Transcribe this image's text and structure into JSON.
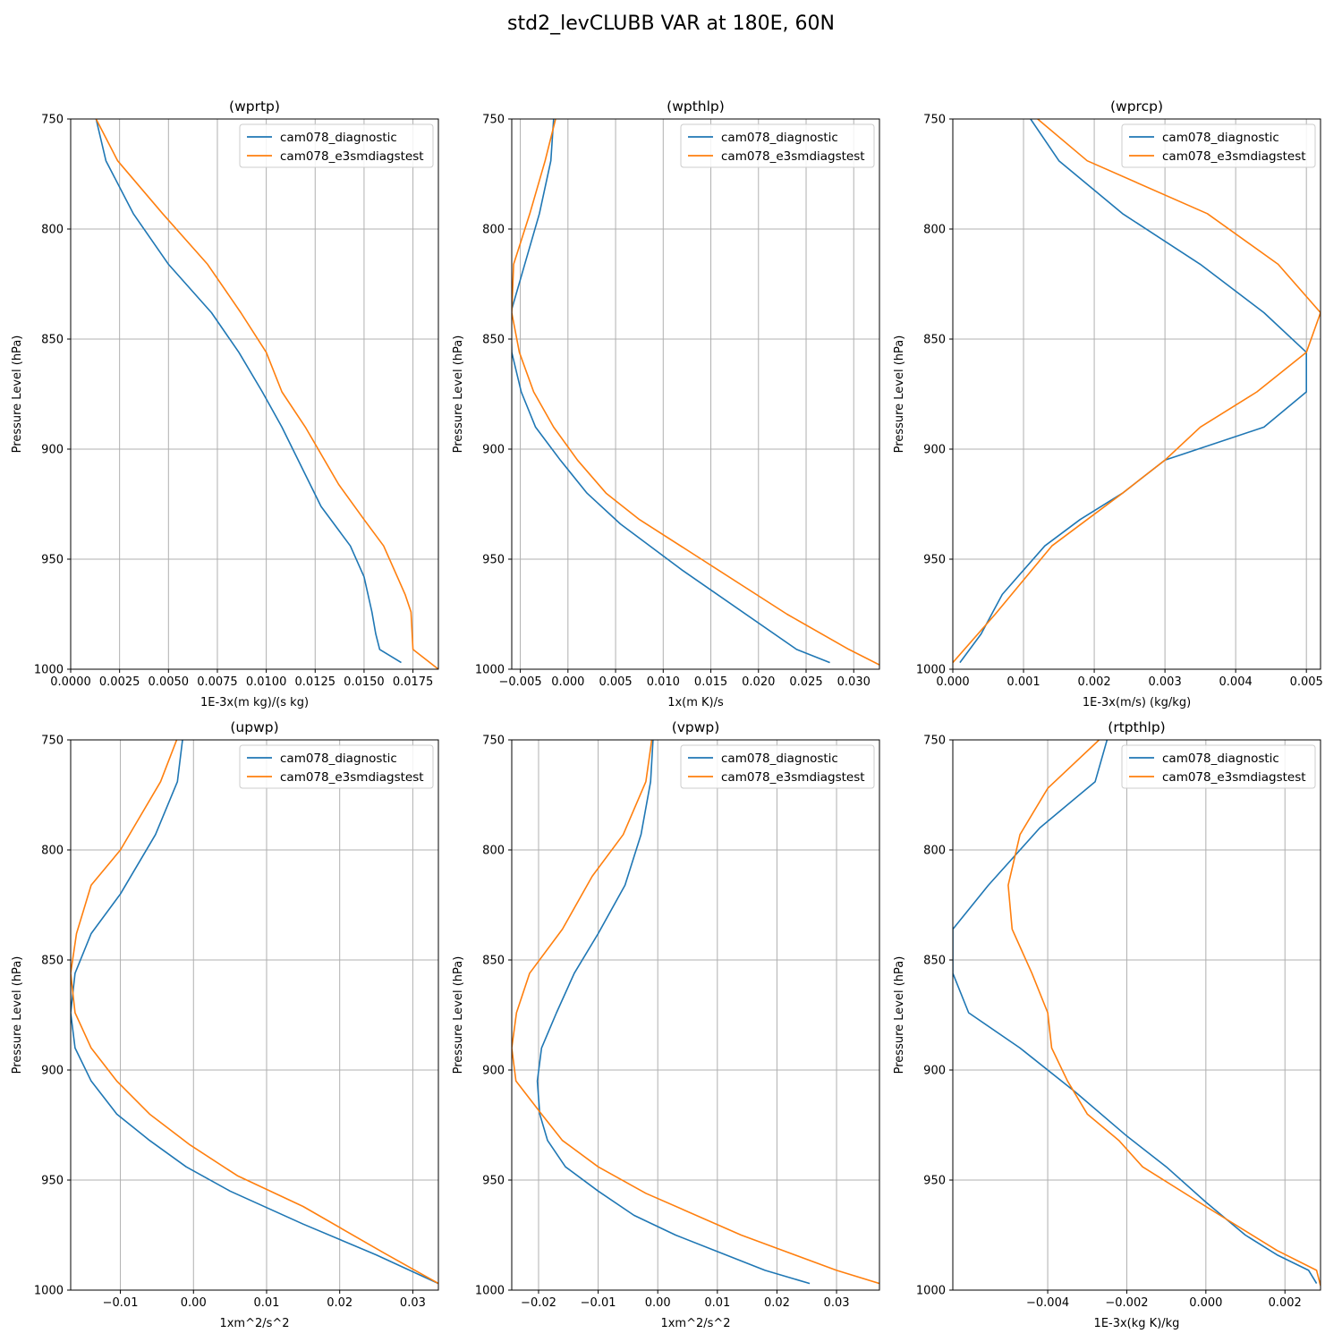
{
  "figure": {
    "title": "std2_levCLUBB VAR at 180E, 60N"
  },
  "colors": {
    "diagnostic": "#1f77b4",
    "e3smdiagstest": "#ff7f0e",
    "grid": "#b0b0b0"
  },
  "chart_data": [
    {
      "type": "line",
      "title": "(wprtp)",
      "xlabel": "1E-3x(m kg)/(s kg)",
      "ylabel": "Pressure Level (hPa)",
      "xlim": [
        0,
        0.0188
      ],
      "ylim": [
        1000,
        750
      ],
      "xticks": [
        0,
        0.0025,
        0.005,
        0.0075,
        0.01,
        0.0125,
        0.015,
        0.0175
      ],
      "xtick_labels": [
        "0.0000",
        "0.0025",
        "0.0050",
        "0.0075",
        "0.0100",
        "0.0125",
        "0.0150",
        "0.0175"
      ],
      "yticks": [
        750,
        800,
        850,
        900,
        950,
        1000
      ],
      "ytick_labels": [
        "750",
        "800",
        "850",
        "900",
        "950",
        "1000"
      ],
      "grid": true,
      "legend": "top-right",
      "series": [
        {
          "name": "cam078_diagnostic",
          "x": [
            0.0013,
            0.0018,
            0.0032,
            0.005,
            0.0072,
            0.0086,
            0.0098,
            0.0108,
            0.0128,
            0.0143,
            0.015,
            0.0154,
            0.0156,
            0.0158,
            0.0169
          ],
          "y": [
            750,
            769,
            793,
            816,
            838,
            856,
            874,
            890,
            926,
            944,
            958,
            974,
            984,
            991,
            997
          ]
        },
        {
          "name": "cam078_e3smdiagstest",
          "x": [
            0.0013,
            0.0024,
            0.0047,
            0.007,
            0.0087,
            0.01,
            0.0108,
            0.012,
            0.0137,
            0.015,
            0.016,
            0.0167,
            0.0171,
            0.0174,
            0.0175,
            0.0188
          ],
          "y": [
            750,
            769,
            793,
            816,
            838,
            856,
            874,
            890,
            916,
            932,
            944,
            958,
            966,
            974,
            991,
            1000
          ]
        }
      ]
    },
    {
      "type": "line",
      "title": "(wpthlp)",
      "xlabel": "1x(m K)/s",
      "ylabel": "Pressure Level (hPa)",
      "xlim": [
        -0.0059,
        0.0327
      ],
      "ylim": [
        1000,
        750
      ],
      "xticks": [
        -0.005,
        0,
        0.005,
        0.01,
        0.015,
        0.02,
        0.025,
        0.03
      ],
      "xtick_labels": [
        "−0.005",
        "0.000",
        "0.005",
        "0.010",
        "0.015",
        "0.020",
        "0.025",
        "0.030"
      ],
      "yticks": [
        750,
        800,
        850,
        900,
        950,
        1000
      ],
      "ytick_labels": [
        "750",
        "800",
        "850",
        "900",
        "950",
        "1000"
      ],
      "grid": true,
      "legend": "top-right",
      "series": [
        {
          "name": "cam078_diagnostic",
          "x": [
            -0.0015,
            -0.0018,
            -0.003,
            -0.0048,
            -0.006,
            -0.0059,
            -0.0049,
            -0.0034,
            -0.0008,
            0.002,
            0.0055,
            0.012,
            0.024,
            0.0275
          ],
          "y": [
            750,
            769,
            793,
            820,
            838,
            856,
            874,
            890,
            905,
            920,
            934,
            955,
            991,
            997
          ]
        },
        {
          "name": "cam078_e3smdiagstest",
          "x": [
            -0.0013,
            -0.0024,
            -0.004,
            -0.0057,
            -0.0059,
            -0.0051,
            -0.0036,
            -0.0015,
            0.001,
            0.004,
            0.0075,
            0.014,
            0.023,
            0.0295,
            0.0327
          ],
          "y": [
            750,
            769,
            793,
            816,
            838,
            856,
            874,
            890,
            905,
            920,
            932,
            950,
            975,
            991,
            998
          ]
        }
      ]
    },
    {
      "type": "line",
      "title": "(wprcp)",
      "xlabel": "1E-3x(m/s) (kg/kg)",
      "ylabel": "Pressure Level (hPa)",
      "xlim": [
        0,
        0.0052
      ],
      "ylim": [
        1000,
        750
      ],
      "xticks": [
        0,
        0.001,
        0.002,
        0.003,
        0.004,
        0.005
      ],
      "xtick_labels": [
        "0.000",
        "0.001",
        "0.002",
        "0.003",
        "0.004",
        "0.005"
      ],
      "yticks": [
        750,
        800,
        850,
        900,
        950,
        1000
      ],
      "ytick_labels": [
        "750",
        "800",
        "850",
        "900",
        "950",
        "1000"
      ],
      "grid": true,
      "legend": "top-right",
      "series": [
        {
          "name": "cam078_diagnostic",
          "x": [
            0.0011,
            0.0015,
            0.0024,
            0.0035,
            0.0044,
            0.005,
            0.005,
            0.0044,
            0.003,
            0.0024,
            0.0018,
            0.0013,
            0.001,
            0.0007,
            0.0004,
            0.0001
          ],
          "y": [
            750,
            769,
            793,
            816,
            838,
            856,
            874,
            890,
            905,
            920,
            932,
            944,
            955,
            966,
            984,
            997
          ]
        },
        {
          "name": "cam078_e3smdiagstest",
          "x": [
            0.0012,
            0.0019,
            0.0036,
            0.0046,
            0.0052,
            0.005,
            0.0043,
            0.0035,
            0.003,
            0.0024,
            0.0019,
            0.0014,
            0.0006,
            0.0
          ],
          "y": [
            750,
            769,
            793,
            816,
            838,
            856,
            874,
            890,
            905,
            920,
            932,
            944,
            975,
            997
          ]
        }
      ]
    },
    {
      "type": "line",
      "title": "(upwp)",
      "xlabel": "1xm^2/s^2",
      "ylabel": "Pressure Level (hPa)",
      "xlim": [
        -0.0168,
        0.0335
      ],
      "ylim": [
        1000,
        750
      ],
      "xticks": [
        -0.01,
        0,
        0.01,
        0.02,
        0.03
      ],
      "xtick_labels": [
        "−0.01",
        "0.00",
        "0.01",
        "0.02",
        "0.03"
      ],
      "yticks": [
        750,
        800,
        850,
        900,
        950,
        1000
      ],
      "ytick_labels": [
        "750",
        "800",
        "850",
        "900",
        "950",
        "1000"
      ],
      "grid": true,
      "legend": "top-right",
      "series": [
        {
          "name": "cam078_diagnostic",
          "x": [
            -0.0015,
            -0.0022,
            -0.0052,
            -0.01,
            -0.014,
            -0.0162,
            -0.0168,
            -0.0162,
            -0.014,
            -0.0105,
            -0.006,
            -0.001,
            0.005,
            0.015,
            0.025,
            0.0335
          ],
          "y": [
            750,
            769,
            793,
            820,
            838,
            856,
            874,
            890,
            905,
            920,
            932,
            944,
            955,
            970,
            984,
            997
          ]
        },
        {
          "name": "cam078_e3smdiagstest",
          "x": [
            -0.0023,
            -0.0045,
            -0.01,
            -0.014,
            -0.016,
            -0.0168,
            -0.0162,
            -0.014,
            -0.0105,
            -0.006,
            -0.0005,
            0.006,
            0.015,
            0.026,
            0.0335
          ],
          "y": [
            750,
            769,
            800,
            816,
            838,
            856,
            874,
            890,
            905,
            920,
            934,
            948,
            962,
            983,
            997
          ]
        }
      ]
    },
    {
      "type": "line",
      "title": "(vpwp)",
      "xlabel": "1xm^2/s^2",
      "ylabel": "Pressure Level (hPa)",
      "xlim": [
        -0.0245,
        0.0372
      ],
      "ylim": [
        1000,
        750
      ],
      "xticks": [
        -0.02,
        -0.01,
        0,
        0.01,
        0.02,
        0.03
      ],
      "xtick_labels": [
        "−0.02",
        "−0.01",
        "0.00",
        "0.01",
        "0.02",
        "0.03"
      ],
      "yticks": [
        750,
        800,
        850,
        900,
        950,
        1000
      ],
      "ytick_labels": [
        "750",
        "800",
        "850",
        "900",
        "950",
        "1000"
      ],
      "grid": true,
      "legend": "top-right",
      "series": [
        {
          "name": "cam078_diagnostic",
          "x": [
            -0.0008,
            -0.0012,
            -0.0028,
            -0.0055,
            -0.01,
            -0.014,
            -0.017,
            -0.0195,
            -0.0202,
            -0.0198,
            -0.0185,
            -0.0155,
            -0.01,
            -0.004,
            0.003,
            0.018,
            0.0255
          ],
          "y": [
            750,
            769,
            793,
            816,
            838,
            856,
            874,
            890,
            905,
            920,
            932,
            944,
            955,
            966,
            975,
            991,
            997
          ]
        },
        {
          "name": "cam078_e3smdiagstest",
          "x": [
            -0.001,
            -0.002,
            -0.0058,
            -0.011,
            -0.016,
            -0.0215,
            -0.0237,
            -0.0245,
            -0.0238,
            -0.0195,
            -0.016,
            -0.01,
            -0.002,
            0.014,
            0.03,
            0.0372
          ],
          "y": [
            750,
            769,
            793,
            812,
            836,
            856,
            874,
            890,
            905,
            920,
            932,
            944,
            956,
            975,
            991,
            997
          ]
        }
      ]
    },
    {
      "type": "line",
      "title": "(rtpthlp)",
      "xlabel": "1E-3x(kg K)/kg",
      "ylabel": "Pressure Level (hPa)",
      "xlim": [
        -0.0064,
        0.0029
      ],
      "ylim": [
        1000,
        750
      ],
      "xticks": [
        -0.004,
        -0.002,
        0,
        0.002
      ],
      "xtick_labels": [
        "−0.004",
        "−0.002",
        "0.000",
        "0.002"
      ],
      "yticks": [
        750,
        800,
        850,
        900,
        950,
        1000
      ],
      "ytick_labels": [
        "750",
        "800",
        "850",
        "900",
        "950",
        "1000"
      ],
      "grid": true,
      "legend": "top-right",
      "series": [
        {
          "name": "cam078_diagnostic",
          "x": [
            -0.0025,
            -0.0028,
            -0.0042,
            -0.0055,
            -0.0064,
            -0.0064,
            -0.006,
            -0.0047,
            -0.0033,
            -0.002,
            -0.001,
            0.0,
            0.001,
            0.0018,
            0.0026,
            0.0028
          ],
          "y": [
            750,
            769,
            790,
            816,
            836,
            856,
            874,
            890,
            910,
            930,
            944,
            960,
            975,
            984,
            991,
            997
          ]
        },
        {
          "name": "cam078_e3smdiagstest",
          "x": [
            -0.0027,
            -0.004,
            -0.0047,
            -0.005,
            -0.0049,
            -0.0044,
            -0.004,
            -0.0039,
            -0.0035,
            -0.003,
            -0.0022,
            -0.0016,
            0.0,
            0.0018,
            0.0028,
            0.0029
          ],
          "y": [
            750,
            772,
            793,
            816,
            836,
            856,
            874,
            890,
            905,
            920,
            932,
            944,
            962,
            982,
            991,
            998
          ]
        }
      ]
    }
  ]
}
